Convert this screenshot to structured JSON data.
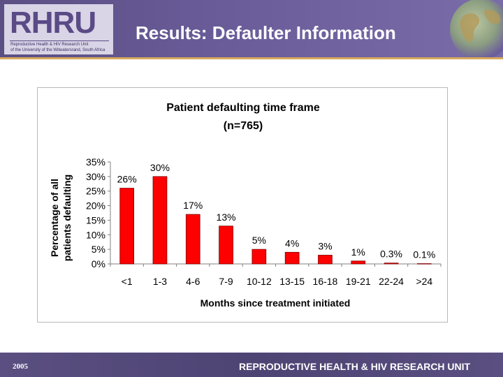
{
  "header": {
    "logo_text": "RHRU",
    "logo_subline_1": "Reproductive Health & HIV Research Unit",
    "logo_subline_2": "of the University of the Witwatersrand, South Africa",
    "title": "Results: Defaulter Information"
  },
  "footer": {
    "year": "2005",
    "organization": "REPRODUCTIVE HEALTH & HIV RESEARCH UNIT"
  },
  "colors": {
    "bar_fill": "#ff0000",
    "bar_stroke": "#800000",
    "header_bg": "#6a5c99",
    "accent_rule": "#d8a85c"
  },
  "chart_data": {
    "type": "bar",
    "title": "Patient defaulting time frame",
    "subtitle": "(n=765)",
    "xlabel": "Months since treatment initiated",
    "ylabel_line1": "Percentage of all",
    "ylabel_line2": "patients defaulting",
    "categories": [
      "<1",
      "1-3",
      "4-6",
      "7-9",
      "10-12",
      "13-15",
      "16-18",
      "19-21",
      "22-24",
      ">24"
    ],
    "values": [
      26,
      30,
      17,
      13,
      5,
      4,
      3,
      1,
      0.3,
      0.1
    ],
    "data_labels": [
      "26%",
      "30%",
      "17%",
      "13%",
      "5%",
      "4%",
      "3%",
      "1%",
      "0.3%",
      "0.1%"
    ],
    "ylim": [
      0,
      35
    ],
    "yticks": [
      0,
      5,
      10,
      15,
      20,
      25,
      30,
      35
    ],
    "ytick_labels": [
      "0%",
      "5%",
      "10%",
      "15%",
      "20%",
      "25%",
      "30%",
      "35%"
    ],
    "grid": false,
    "legend": "none"
  }
}
